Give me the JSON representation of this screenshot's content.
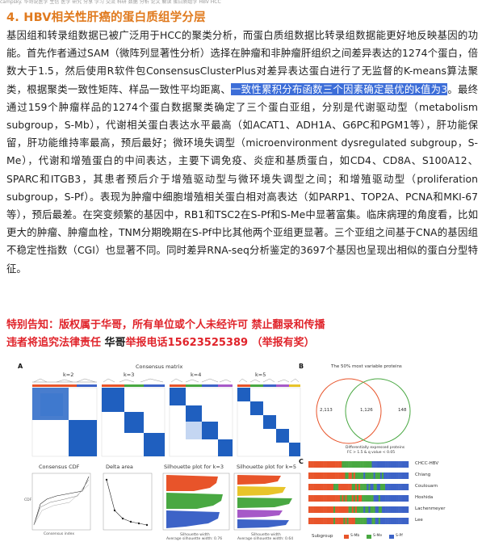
{
  "top_strip": "campsky. 华哥说医学 生信 医学 研究 分享 学习 交流 科研 数据 分析 论文 解读 蛋白质组学 HBV HCC",
  "heading": "4. HBV相关性肝癌的蛋白质组学分层",
  "paragraph": {
    "before_highlight": "基因组和转录组数据已被广泛用于HCC的聚类分析，而蛋白质组数据比转录组数据能更好地反映基因的功能。首先作者通过SAM（微阵列显著性分析）选择在肿瘤和非肿瘤肝组织之间差异表达的1274个蛋白，倍数大于1.5，然后使用R软件包ConsensusClusterPlus对差异表达蛋白进行了无监督的K-means算法聚类，根据聚类一致性矩阵、样品一致性平均距离、",
    "highlight": "一致性累积分布函数三个因素确定最优的k值为3",
    "after_highlight": "。最终通过159个肿瘤样品的1274个蛋白数据聚类确定了三个蛋白亚组，分别是代谢驱动型（metabolism subgroup，S-Mb），代谢相关蛋白表达水平最高（如ACAT1、ADH1A、G6PC和PGM1等），肝功能保留，肝功能维持率最高，预后最好；微环境失调型（microenvironment dysregulated subgroup，S-Me），代谢和增殖蛋白的中间表达，主要下调免疫、炎症和基质蛋白，如CD4、CD8A、S100A12、SPARC和ITGB3，其患者预后介于增殖驱动型与微环境失调型之间；和增殖驱动型（proliferation subgroup，S-Pf）。表现为肿瘤中细胞增殖相关蛋白相对高表达（如PARP1、TOP2A、PCNA和MKI-67等），预后最差。在突变频繁的基因中，RB1和TSC2在S-Pf和S-Me中显著富集。临床病理的角度看，比如更大的肿瘤、肿瘤血栓，TNM分期晚期在S-Pf中比其他两个亚组更显著。三个亚组之间基于CNA的基因组不稳定性指数（CGI）也显著不同。同时差异RNA-seq分析鉴定的3697个基因也呈现出相似的蛋白分型特征。"
  },
  "notice": {
    "line1": "特别告知：版权属于华哥，所有单位或个人未经许可 禁止翻录和传播",
    "line2_a": "违者将追究法律责任 ",
    "line2_b": "华哥",
    "line2_c": "举报电话15623525389  （举报有奖）"
  },
  "figure": {
    "panel_letters": [
      "A",
      "B",
      "C"
    ],
    "consensus_matrix_title": "Consensus matrix",
    "k_labels": [
      "k=2",
      "k=3",
      "k=4",
      "k=5"
    ],
    "cdf_title": "Consensus CDF",
    "cdf_xlabel": "Consensus index",
    "cdf_ylabel": "CDF",
    "delta_title": "Delta area",
    "delta_ylabel": "Relative change in area under CDF curve",
    "sil3_title": "Silhouette plot for k=3",
    "sil5_title": "Silhouette plot for k=5",
    "sil_xlabel": "Silhouette width",
    "sil3_avg": "Average silhouette width: 0.76",
    "sil5_avg": "Average silhouette width: 0.64",
    "venn_title": "The 50% most variable proteins",
    "venn_left": "2,113",
    "venn_mid": "1,126",
    "venn_right": "148",
    "venn_caption1": "Differentially expressed proteins",
    "venn_caption2": "FC > 1.5 & q value < 0.05",
    "cohort_labels": [
      "CHCC-HBV",
      "Chiang",
      "Coulouarn",
      "Hoshida",
      "Lachenmeyer",
      "Lee"
    ],
    "subgroup_label": "Subgroup",
    "subgroup_legend": [
      "S-Mb",
      "S-Me",
      "S-Pf"
    ],
    "colors": {
      "heading": "#e07a1e",
      "notice": "#e0242b",
      "highlight_bg": "#3d6ed8",
      "matrix_blue": "#1f5fbf",
      "s_mb": "#e8542a",
      "s_me": "#49a842",
      "s_pf": "#3d63c7"
    }
  }
}
